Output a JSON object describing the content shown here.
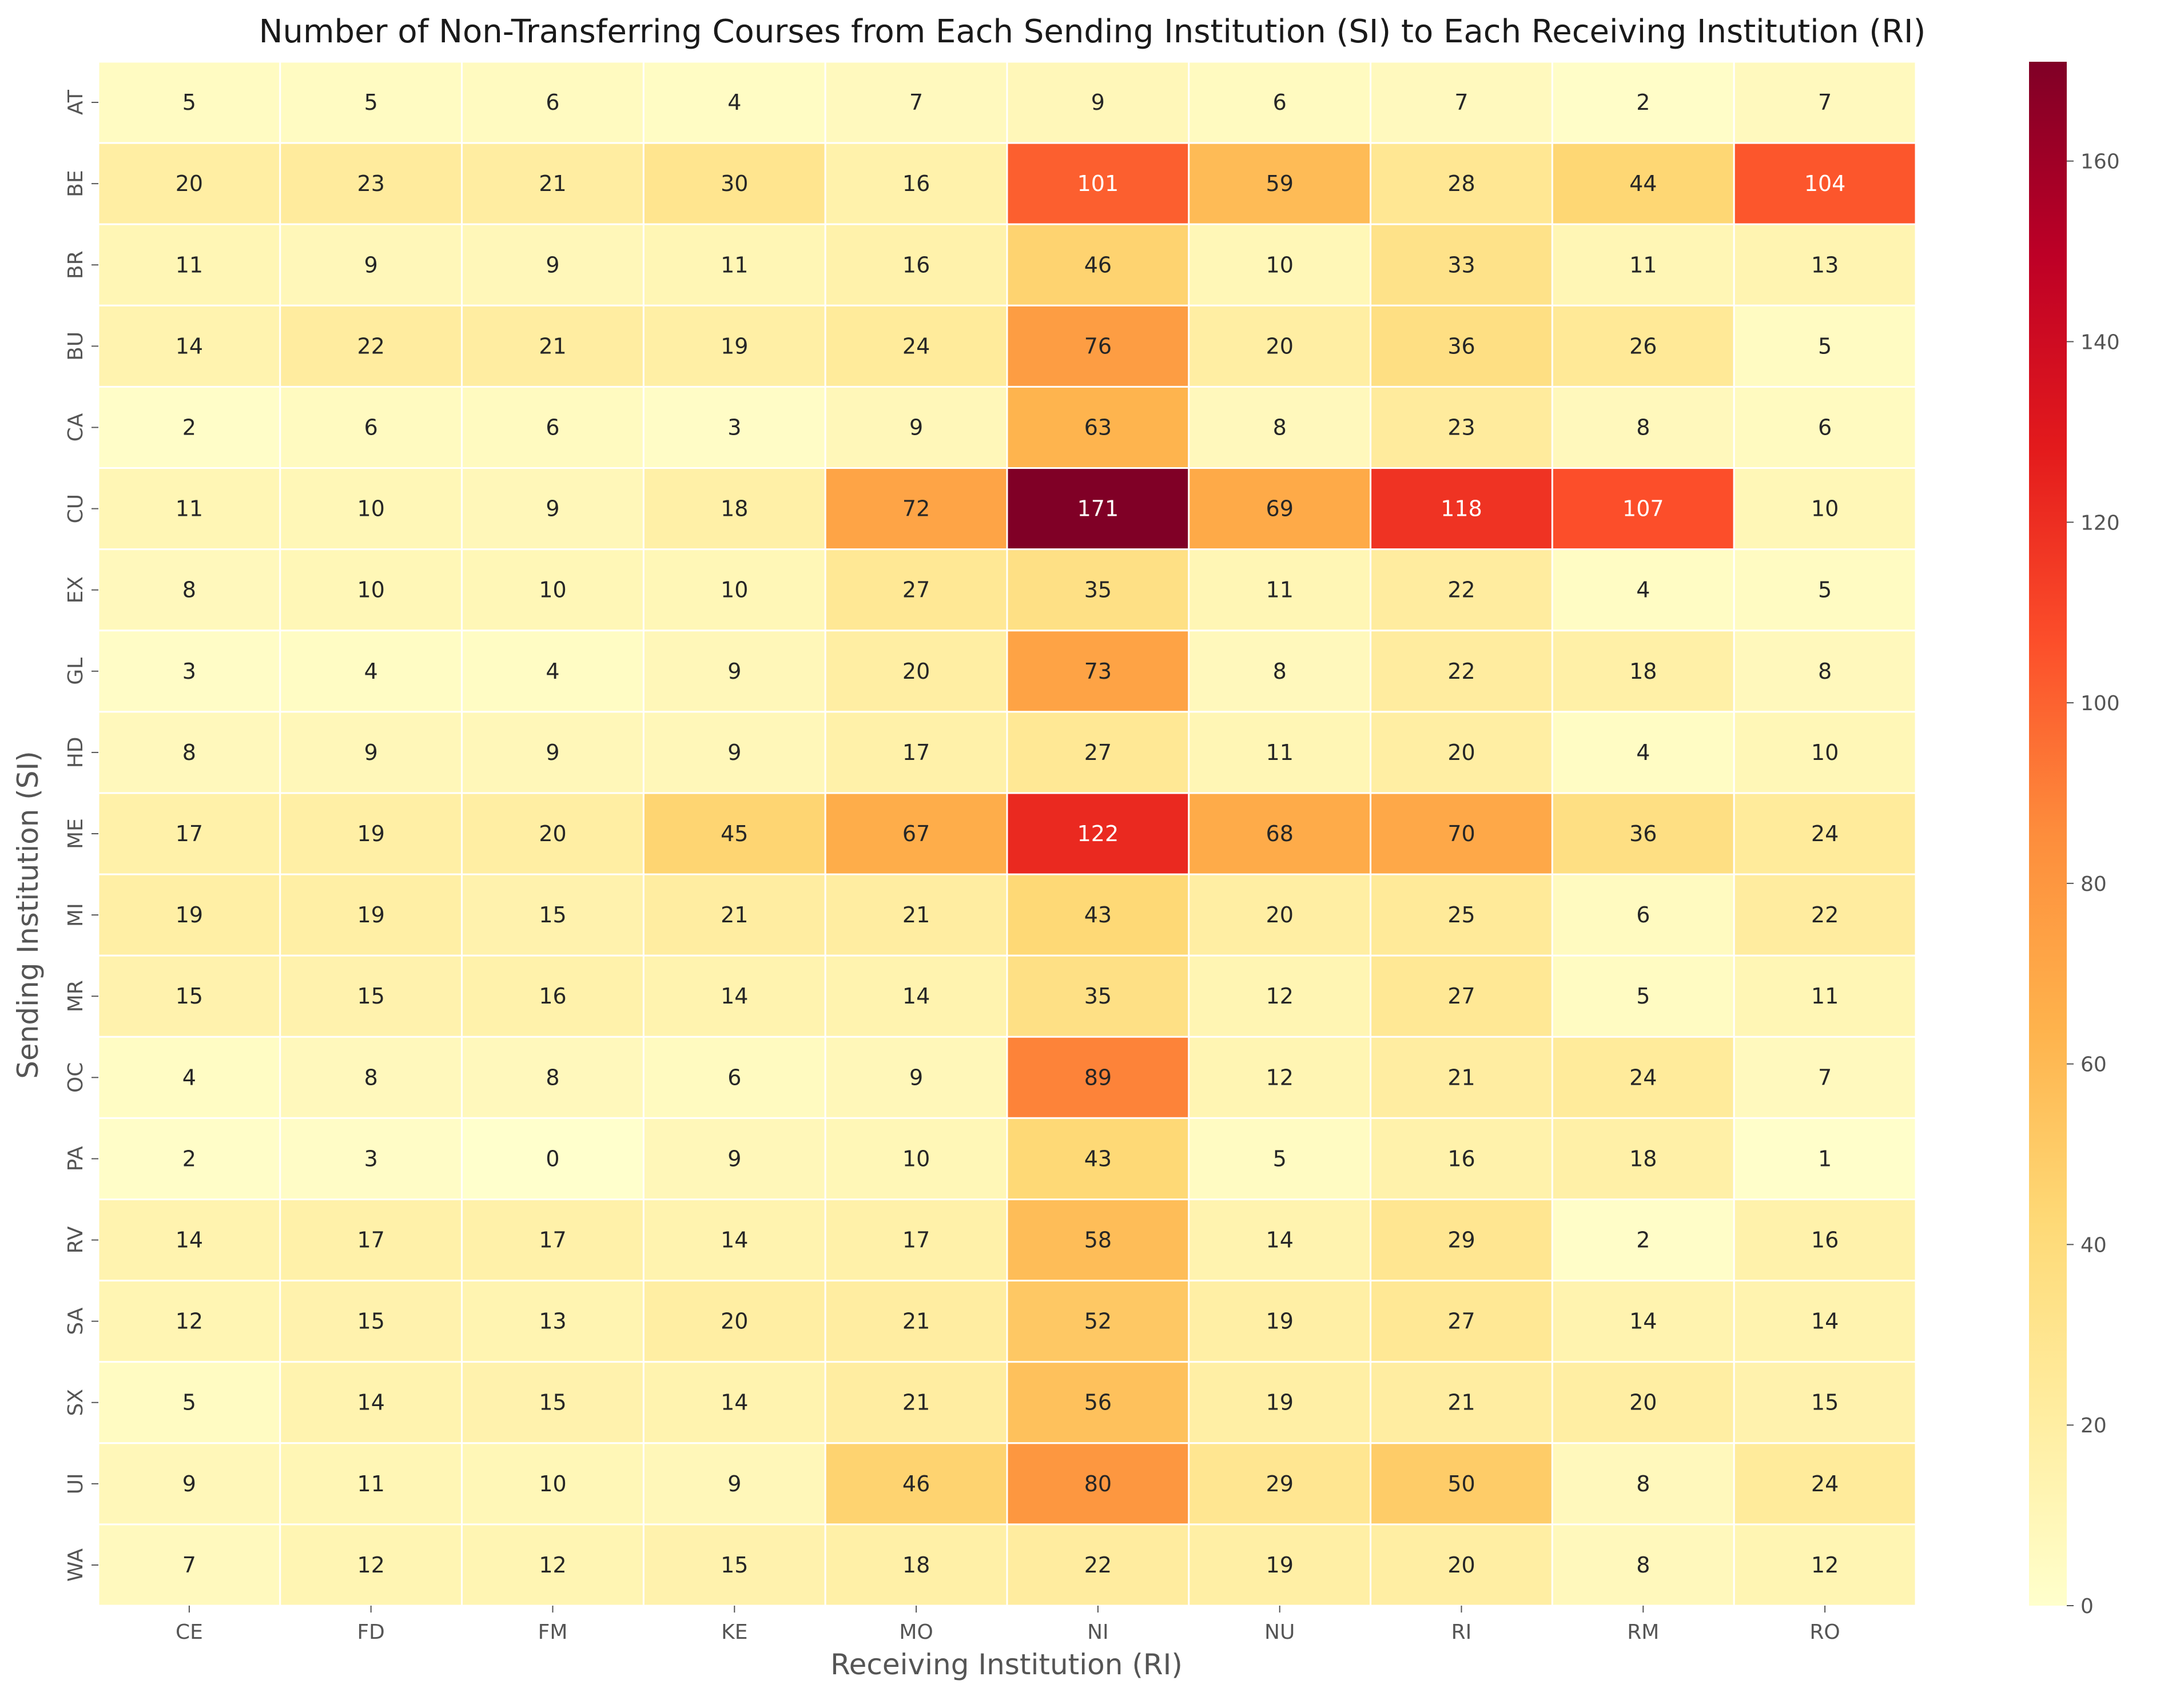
{
  "chart_data": {
    "type": "heatmap",
    "title": "Number of Non-Transferring Courses from Each Sending Institution (SI) to Each Receiving Institution (RI)",
    "xlabel": "Receiving Institution (RI)",
    "ylabel": "Sending Institution (SI)",
    "x_categories": [
      "CE",
      "FD",
      "FM",
      "KE",
      "MO",
      "NI",
      "NU",
      "RI",
      "RM",
      "RO"
    ],
    "y_categories": [
      "AT",
      "BE",
      "BR",
      "BU",
      "CA",
      "CU",
      "EX",
      "GL",
      "HD",
      "ME",
      "MI",
      "MR",
      "OC",
      "PA",
      "RV",
      "SA",
      "SX",
      "UI",
      "WA"
    ],
    "values": [
      [
        5,
        5,
        6,
        4,
        7,
        9,
        6,
        7,
        2,
        7
      ],
      [
        20,
        23,
        21,
        30,
        16,
        101,
        59,
        28,
        44,
        104
      ],
      [
        11,
        9,
        9,
        11,
        16,
        46,
        10,
        33,
        11,
        13
      ],
      [
        14,
        22,
        21,
        19,
        24,
        76,
        20,
        36,
        26,
        5
      ],
      [
        2,
        6,
        6,
        3,
        9,
        63,
        8,
        23,
        8,
        6
      ],
      [
        11,
        10,
        9,
        18,
        72,
        171,
        69,
        118,
        107,
        10
      ],
      [
        8,
        10,
        10,
        10,
        27,
        35,
        11,
        22,
        4,
        5
      ],
      [
        3,
        4,
        4,
        9,
        20,
        73,
        8,
        22,
        18,
        8
      ],
      [
        8,
        9,
        9,
        9,
        17,
        27,
        11,
        20,
        4,
        10
      ],
      [
        17,
        19,
        20,
        45,
        67,
        122,
        68,
        70,
        36,
        24
      ],
      [
        19,
        19,
        15,
        21,
        21,
        43,
        20,
        25,
        6,
        22
      ],
      [
        15,
        15,
        16,
        14,
        14,
        35,
        12,
        27,
        5,
        11
      ],
      [
        4,
        8,
        8,
        6,
        9,
        89,
        12,
        21,
        24,
        7
      ],
      [
        2,
        3,
        0,
        9,
        10,
        43,
        5,
        16,
        18,
        1
      ],
      [
        14,
        17,
        17,
        14,
        17,
        58,
        14,
        29,
        2,
        16
      ],
      [
        12,
        15,
        13,
        20,
        21,
        52,
        19,
        27,
        14,
        14
      ],
      [
        5,
        14,
        15,
        14,
        21,
        56,
        19,
        21,
        20,
        15
      ],
      [
        9,
        11,
        10,
        9,
        46,
        80,
        29,
        50,
        8,
        24
      ],
      [
        7,
        12,
        12,
        15,
        18,
        22,
        19,
        20,
        8,
        12
      ]
    ],
    "colorbar": {
      "colormap": "YlOrRd",
      "range": [
        0,
        171
      ],
      "ticks": [
        0,
        20,
        40,
        60,
        80,
        100,
        120,
        140,
        160
      ]
    },
    "annotations": "cell values shown"
  }
}
